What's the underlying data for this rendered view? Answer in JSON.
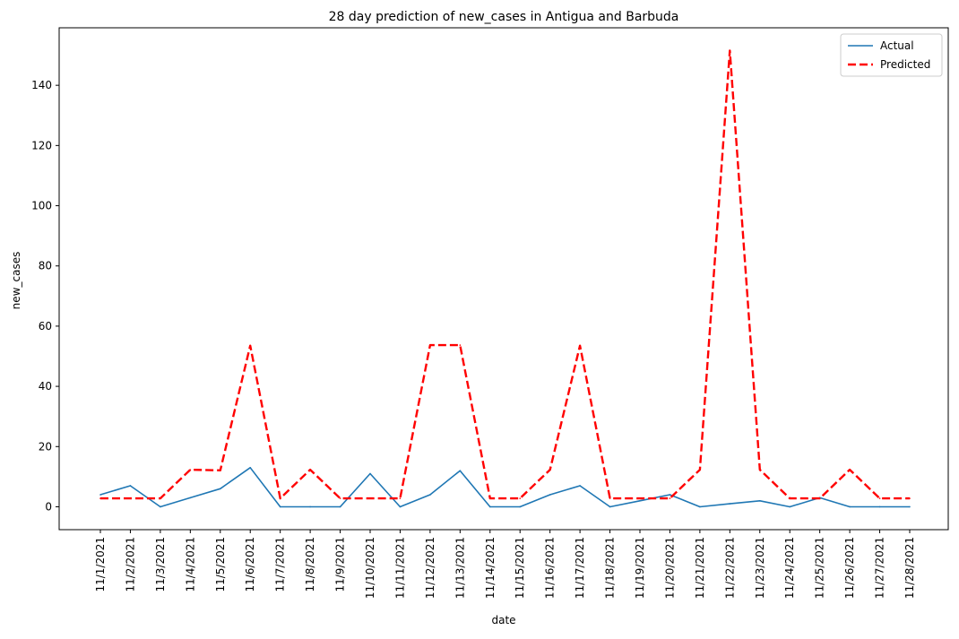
{
  "chart_data": {
    "type": "line",
    "title": "28 day prediction of new_cases in Antigua and Barbuda",
    "xlabel": "date",
    "ylabel": "new_cases",
    "categories": [
      "11/1/2021",
      "11/2/2021",
      "11/3/2021",
      "11/4/2021",
      "11/5/2021",
      "11/6/2021",
      "11/7/2021",
      "11/8/2021",
      "11/9/2021",
      "11/10/2021",
      "11/11/2021",
      "11/12/2021",
      "11/13/2021",
      "11/14/2021",
      "11/15/2021",
      "11/16/2021",
      "11/17/2021",
      "11/18/2021",
      "11/19/2021",
      "11/20/2021",
      "11/21/2021",
      "11/22/2021",
      "11/23/2021",
      "11/24/2021",
      "11/25/2021",
      "11/26/2021",
      "11/27/2021",
      "11/28/2021"
    ],
    "series": [
      {
        "name": "Actual",
        "color": "#1f77b4",
        "style": "solid",
        "values": [
          4,
          7,
          0,
          3,
          6,
          13,
          0,
          0,
          0,
          11,
          0,
          4,
          12,
          0,
          0,
          4,
          7,
          0,
          2,
          4,
          0,
          1,
          2,
          0,
          3,
          0,
          0,
          0
        ]
      },
      {
        "name": "Predicted",
        "color": "#ff0000",
        "style": "dashed",
        "values": [
          2.8,
          2.8,
          2.8,
          12.3,
          12.1,
          53.5,
          2.8,
          12.3,
          2.8,
          2.8,
          2.8,
          53.7,
          53.7,
          2.8,
          2.8,
          12.3,
          53.5,
          2.8,
          2.8,
          2.8,
          12.3,
          151.5,
          12.3,
          2.8,
          2.8,
          12.3,
          2.8,
          2.8
        ]
      }
    ],
    "yticks": [
      0,
      20,
      40,
      60,
      80,
      100,
      120,
      140
    ],
    "ylim": [
      -7.6,
      159.1
    ],
    "grid": false,
    "legend": "top-right"
  }
}
